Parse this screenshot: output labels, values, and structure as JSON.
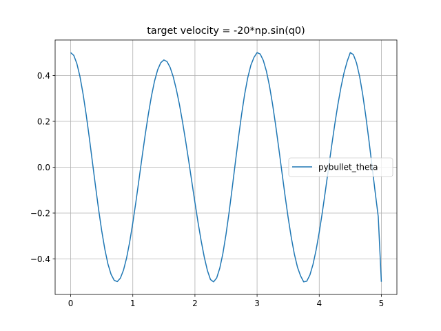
{
  "chart_data": {
    "type": "line",
    "title": "target velocity = -20*np.sin(q0)",
    "xlabel": "",
    "ylabel": "",
    "xlim": [
      -0.25,
      5.25
    ],
    "ylim": [
      -0.555,
      0.555
    ],
    "x_ticks": [
      0,
      1,
      2,
      3,
      4,
      5
    ],
    "x_tick_labels": [
      "0",
      "1",
      "2",
      "3",
      "4",
      "5"
    ],
    "y_ticks": [
      0.4,
      0.2,
      0.0,
      -0.2,
      -0.4
    ],
    "y_tick_labels": [
      "0.4",
      "0.2",
      "0.0",
      "−0.2",
      "−0.4"
    ],
    "grid": true,
    "legend_position": "center-right",
    "series": [
      {
        "name": "pybullet_theta",
        "color": "#1f77b4",
        "x": [
          0.0,
          0.05,
          0.1,
          0.15,
          0.2,
          0.25,
          0.3,
          0.35,
          0.4,
          0.45,
          0.5,
          0.55,
          0.6,
          0.65,
          0.7,
          0.75,
          0.8,
          0.85,
          0.9,
          0.95,
          1.0,
          1.05,
          1.1,
          1.15,
          1.2,
          1.25,
          1.3,
          1.35,
          1.4,
          1.45,
          1.5,
          1.55,
          1.6,
          1.65,
          1.7,
          1.75,
          1.8,
          1.85,
          1.9,
          1.95,
          2.0,
          2.05,
          2.1,
          2.15,
          2.2,
          2.25,
          2.3,
          2.35,
          2.4,
          2.45,
          2.5,
          2.55,
          2.6,
          2.65,
          2.7,
          2.75,
          2.8,
          2.85,
          2.9,
          2.95,
          3.0,
          3.05,
          3.1,
          3.15,
          3.2,
          3.25,
          3.3,
          3.35,
          3.4,
          3.45,
          3.5,
          3.55,
          3.6,
          3.65,
          3.7,
          3.75,
          3.8,
          3.85,
          3.9,
          3.95,
          4.0,
          4.05,
          4.1,
          4.15,
          4.2,
          4.25,
          4.3,
          4.35,
          4.4,
          4.45,
          4.5,
          4.55,
          4.6,
          4.65,
          4.7,
          4.75,
          4.8,
          4.85,
          4.9,
          4.95,
          5.0
        ],
        "y": [
          0.5,
          0.488,
          0.452,
          0.395,
          0.319,
          0.229,
          0.129,
          0.023,
          -0.083,
          -0.185,
          -0.278,
          -0.358,
          -0.422,
          -0.467,
          -0.493,
          -0.499,
          -0.484,
          -0.449,
          -0.396,
          -0.326,
          -0.243,
          -0.151,
          -0.053,
          0.046,
          0.142,
          0.231,
          0.31,
          0.376,
          0.425,
          0.456,
          0.468,
          0.461,
          0.436,
          0.395,
          0.34,
          0.274,
          0.198,
          0.115,
          0.027,
          -0.064,
          -0.154,
          -0.241,
          -0.321,
          -0.392,
          -0.45,
          -0.49,
          -0.5,
          -0.483,
          -0.44,
          -0.376,
          -0.293,
          -0.196,
          -0.09,
          0.02,
          0.128,
          0.229,
          0.318,
          0.391,
          0.445,
          0.479,
          0.5,
          0.494,
          0.466,
          0.419,
          0.354,
          0.273,
          0.181,
          0.081,
          -0.022,
          -0.124,
          -0.22,
          -0.306,
          -0.379,
          -0.436,
          -0.474,
          -0.5,
          -0.497,
          -0.47,
          -0.424,
          -0.361,
          -0.284,
          -0.197,
          -0.102,
          -0.004,
          0.093,
          0.187,
          0.273,
          0.349,
          0.413,
          0.462,
          0.5,
          0.491,
          0.455,
          0.396,
          0.317,
          0.222,
          0.117,
          0.005,
          -0.108,
          -0.216,
          -0.5
        ]
      }
    ]
  }
}
